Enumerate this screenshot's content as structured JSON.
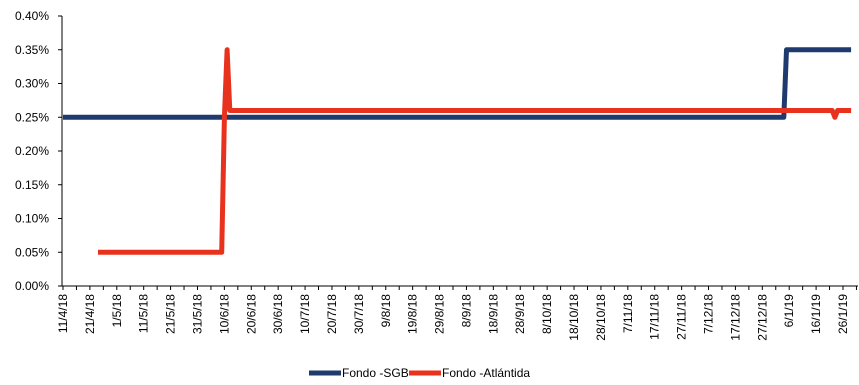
{
  "chart_data": {
    "type": "line",
    "title": "",
    "xlabel": "",
    "ylabel": "",
    "ylim": [
      0,
      0.4
    ],
    "yticks": [
      "0.00%",
      "0.05%",
      "0.10%",
      "0.15%",
      "0.20%",
      "0.25%",
      "0.30%",
      "0.35%",
      "0.40%"
    ],
    "xticks": [
      "11/4/18",
      "21/4/18",
      "1/5/18",
      "11/5/18",
      "21/5/18",
      "31/5/18",
      "10/6/18",
      "20/6/18",
      "30/6/18",
      "10/7/18",
      "20/7/18",
      "30/7/18",
      "9/8/18",
      "19/8/18",
      "29/8/18",
      "8/9/18",
      "18/9/18",
      "28/9/18",
      "8/10/18",
      "18/10/18",
      "28/10/18",
      "7/11/18",
      "17/11/18",
      "27/11/18",
      "7/12/18",
      "17/12/18",
      "27/12/18",
      "6/1/19",
      "16/1/19",
      "26/1/19"
    ],
    "grid": false,
    "legend_position": "bottom",
    "series": [
      {
        "name": "Fondo -SGB",
        "color": "#1f3a6e",
        "points": [
          {
            "x": "11/4/18",
            "y": 0.25
          },
          {
            "x": "4/1/19",
            "y": 0.25
          },
          {
            "x": "5/1/19",
            "y": 0.35
          },
          {
            "x": "29/1/19",
            "y": 0.35
          }
        ]
      },
      {
        "name": "Fondo -Atlántida",
        "color": "#e8321e",
        "points": [
          {
            "x": "24/4/18",
            "y": 0.05
          },
          {
            "x": "9/6/18",
            "y": 0.05
          },
          {
            "x": "10/6/18",
            "y": 0.25
          },
          {
            "x": "11/6/18",
            "y": 0.35
          },
          {
            "x": "12/6/18",
            "y": 0.26
          },
          {
            "x": "22/1/19",
            "y": 0.26
          },
          {
            "x": "23/1/19",
            "y": 0.25
          },
          {
            "x": "24/1/19",
            "y": 0.26
          },
          {
            "x": "29/1/19",
            "y": 0.26
          }
        ]
      }
    ]
  }
}
